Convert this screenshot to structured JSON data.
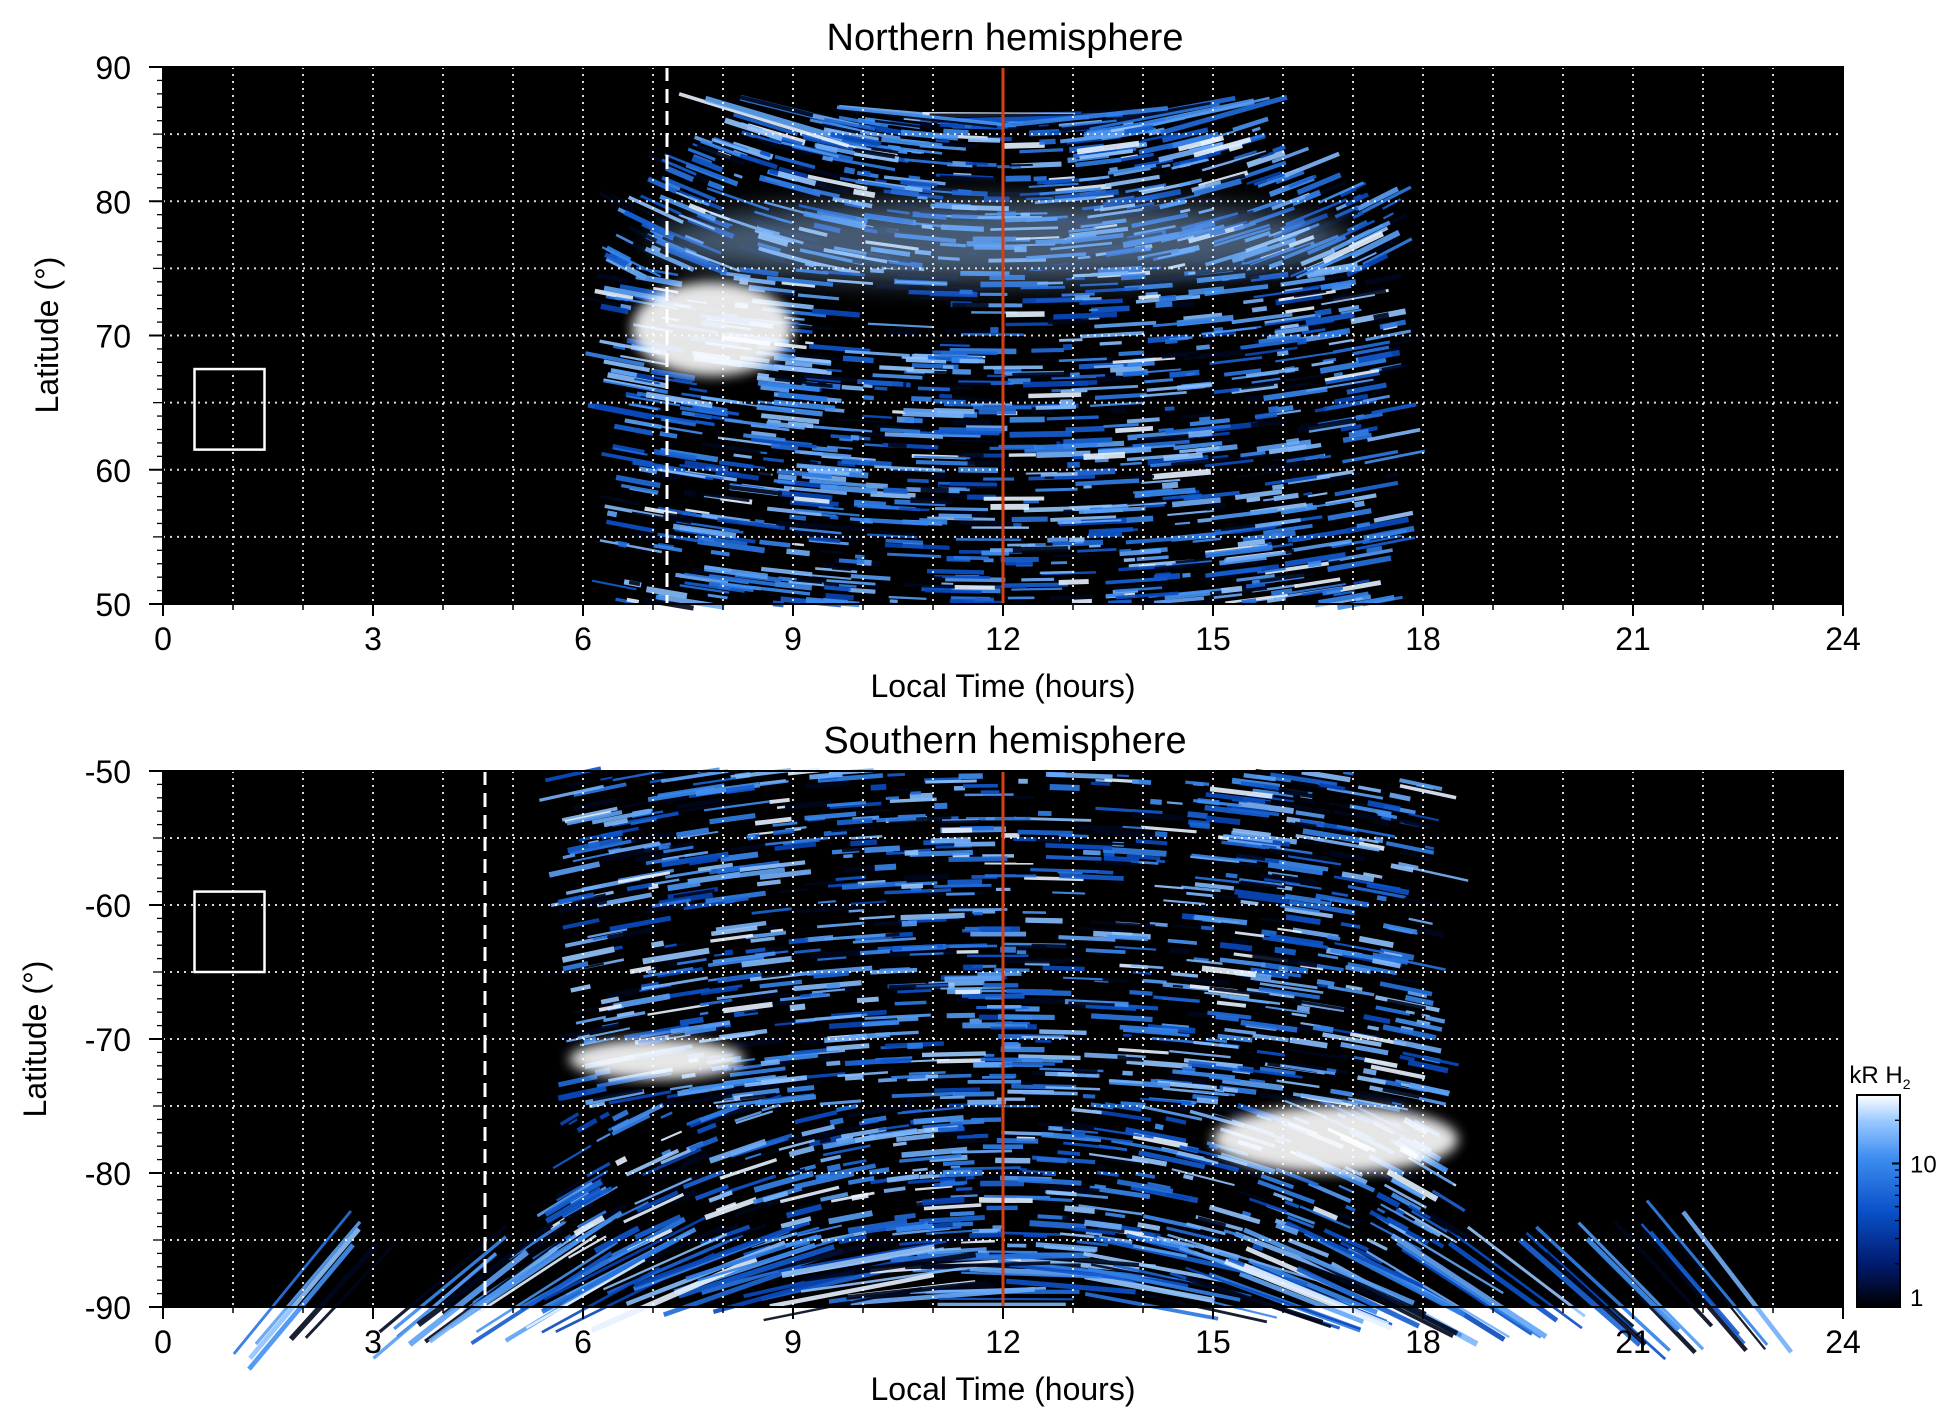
{
  "chart_data": [
    {
      "type": "heatmap",
      "title": "Northern hemisphere",
      "xlabel": "Local Time (hours)",
      "ylabel": "Latitude (°)",
      "xlim": [
        0,
        24
      ],
      "ylim": [
        50,
        90
      ],
      "xticks": [
        "0",
        "3",
        "6",
        "9",
        "12",
        "15",
        "18",
        "21",
        "24"
      ],
      "yticks": [
        "50",
        "60",
        "70",
        "80",
        "90"
      ],
      "grid": true,
      "reference_lines": {
        "noon_local_time": 12,
        "dashed_local_time": 7.2
      },
      "marker_box": {
        "local_time": [
          0.45,
          1.45
        ],
        "latitude": [
          61.5,
          67.5
        ]
      },
      "coverage": {
        "local_time": [
          6.4,
          17.7
        ],
        "latitude": [
          50,
          86.5
        ]
      },
      "bright_features": [
        {
          "local_time": [
            6.7,
            9.0
          ],
          "latitude": [
            67,
            74
          ],
          "intensity_kR": 30
        },
        {
          "local_time": [
            7.0,
            17.0
          ],
          "latitude": [
            74,
            80
          ],
          "intensity_kR": 10
        }
      ],
      "colors": {
        "background": "#000000",
        "noon_line": "#d2401a",
        "grid": "#ffffff"
      }
    },
    {
      "type": "heatmap",
      "title": "Southern hemisphere",
      "xlabel": "Local Time (hours)",
      "ylabel": "Latitude (°)",
      "xlim": [
        0,
        24
      ],
      "ylim": [
        -90,
        -50
      ],
      "xticks": [
        "0",
        "3",
        "6",
        "9",
        "12",
        "15",
        "18",
        "21",
        "24"
      ],
      "yticks": [
        "-50",
        "-60",
        "-70",
        "-80",
        "-90"
      ],
      "grid": true,
      "reference_lines": {
        "noon_local_time": 12,
        "dashed_local_time": 4.6
      },
      "marker_box": {
        "local_time": [
          0.45,
          1.45
        ],
        "latitude": [
          -65,
          -59
        ]
      },
      "coverage": {
        "local_time": [
          2.0,
          23.3
        ],
        "latitude": [
          -90,
          -50
        ]
      },
      "bright_features": [
        {
          "local_time": [
            5.8,
            8.3
          ],
          "latitude": [
            -73,
            -70
          ],
          "intensity_kR": 30
        },
        {
          "local_time": [
            15.0,
            18.5
          ],
          "latitude": [
            -80,
            -75
          ],
          "intensity_kR": 25
        }
      ],
      "colors": {
        "background": "#000000",
        "noon_line": "#d2401a",
        "grid": "#ffffff"
      }
    }
  ],
  "colorbar": {
    "label": "kR H",
    "label_subscript": "2",
    "ticks": [
      "10",
      "1"
    ],
    "tick_values": [
      10,
      1
    ],
    "range_kR": [
      1,
      30
    ],
    "scale": "log",
    "colors": [
      "#000000",
      "#001a6e",
      "#0a50c8",
      "#3c8cf0",
      "#9ccaff",
      "#ffffff"
    ]
  }
}
